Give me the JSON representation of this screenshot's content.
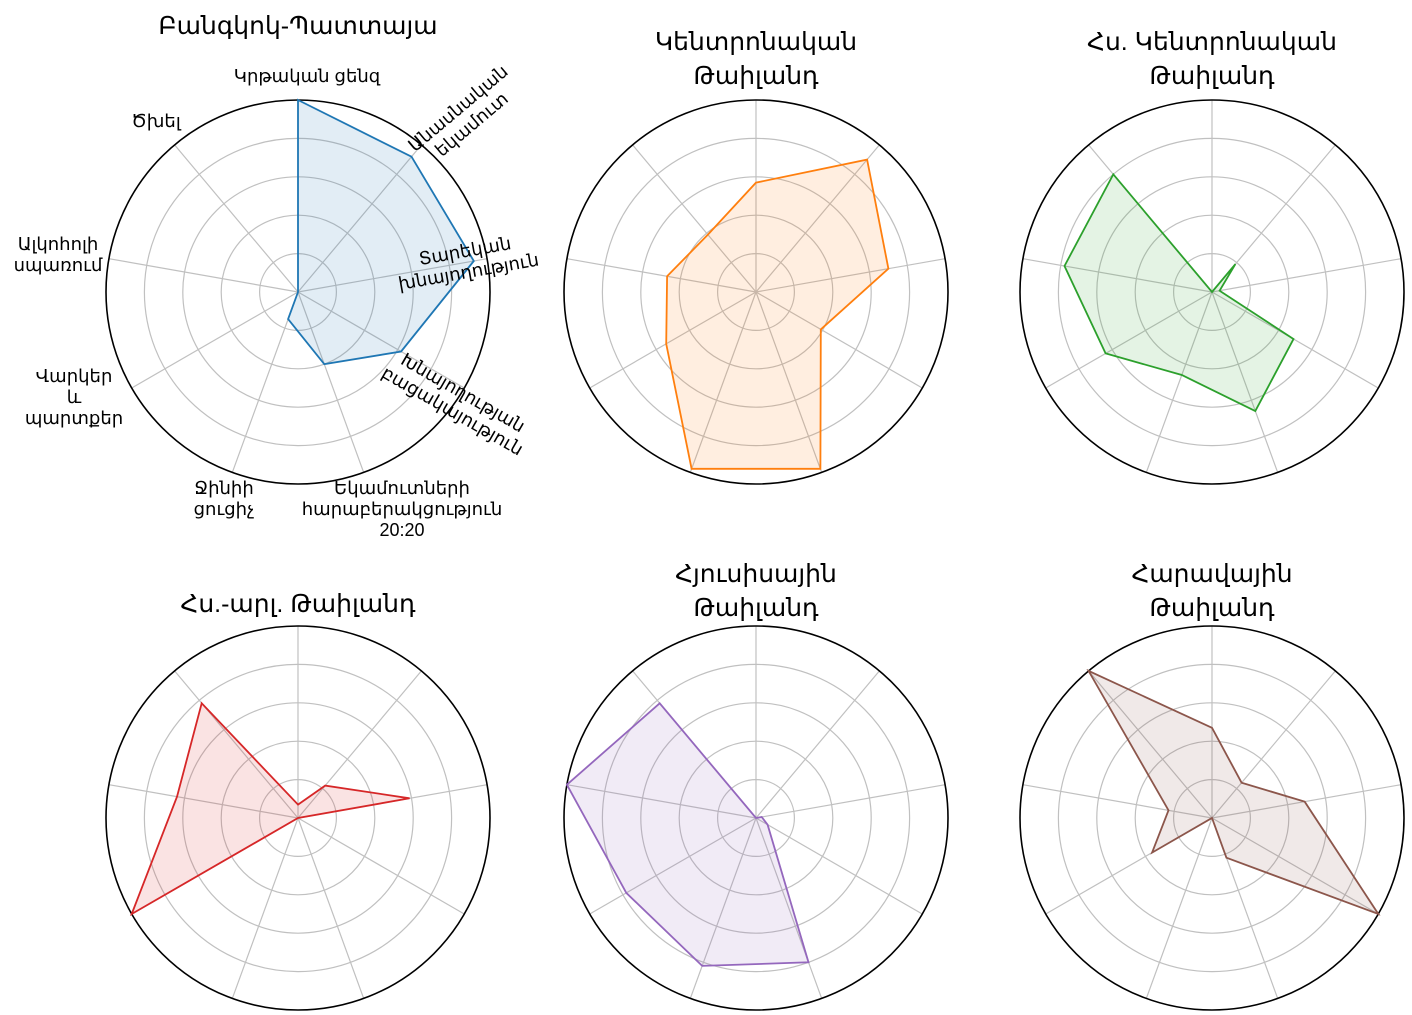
{
  "chart_data": {
    "type": "radar",
    "axes": [
      "Կրթական ցենզ",
      "Անասնական եկամուտ",
      "Տարեկան խնայողություն",
      "Խնայողության բացակայություն",
      "Եկամուտների հարաբերակցություն 20:20",
      "Ջինիի ցուցիչ",
      "Վարկեր և պարտքեր",
      "Ալկոհոլի սպառում",
      "Ծխել"
    ],
    "rlim": [
      0,
      1
    ],
    "grid": true,
    "panels": [
      {
        "title": "Բանգկոկ-Պատտայա",
        "color": "#1f77b4",
        "values": [
          1.0,
          0.92,
          0.93,
          0.62,
          0.4,
          0.15,
          0.0,
          0.0,
          0.0
        ]
      },
      {
        "title": "Կենտրոնական Թաիլանդ",
        "color": "#ff7f0e",
        "values": [
          0.57,
          0.9,
          0.7,
          0.39,
          0.98,
          0.98,
          0.54,
          0.47,
          0.39
        ]
      },
      {
        "title": "Հս. Կենտրոնական Թաիլանդ",
        "color": "#2ca02c",
        "values": [
          0.0,
          0.19,
          0.04,
          0.49,
          0.66,
          0.46,
          0.64,
          0.78,
          0.8
        ]
      },
      {
        "title": "Հս.-արլ. Թաիլանդ",
        "color": "#d62728",
        "values": [
          0.07,
          0.22,
          0.59,
          0.0,
          0.0,
          0.0,
          1.0,
          0.64,
          0.78
        ]
      },
      {
        "title": "Հյուսիսային Թաիլանդ",
        "color": "#9467bd",
        "values": [
          0.0,
          0.0,
          0.03,
          0.07,
          0.8,
          0.82,
          0.78,
          1.0,
          0.78
        ]
      },
      {
        "title": "Հարավային Թաիլանդ",
        "color": "#8c564b",
        "values": [
          0.47,
          0.24,
          0.49,
          1.0,
          0.22,
          0.0,
          0.36,
          0.23,
          1.0
        ]
      }
    ]
  }
}
